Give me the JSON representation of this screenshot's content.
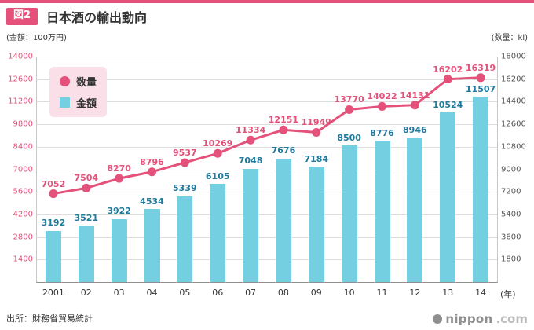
{
  "header": {
    "figure_label": "図2",
    "title": "日本酒の輸出動向"
  },
  "legend": {
    "line_label": "数量",
    "bar_label": "金額"
  },
  "footer": {
    "source": "出所：財務省貿易統計",
    "logo_name": "nippon",
    "logo_tld": ".com"
  },
  "colors": {
    "accent_pink": "#e4527b",
    "bar_fill": "#74cfe0",
    "bar_value_color": "#1f7a9b",
    "legend_bg": "#fadee8",
    "grid": "#dddddd",
    "left_tick_color": "#e4527b",
    "right_tick_color": "#555555"
  },
  "chart_data": {
    "type": "combo-bar-line",
    "title": "日本酒の輸出動向",
    "categories": [
      "2001",
      "02",
      "03",
      "04",
      "05",
      "06",
      "07",
      "08",
      "09",
      "10",
      "11",
      "12",
      "13",
      "14"
    ],
    "x_suffix": "(年)",
    "left_axis": {
      "label": "(金額：100万円)",
      "min": 0,
      "max": 14000,
      "ticks": [
        1400,
        2800,
        4200,
        5600,
        7000,
        8400,
        9800,
        11200,
        12600,
        14000
      ]
    },
    "right_axis": {
      "label": "(数量：kl)",
      "min": 0,
      "max": 18000,
      "ticks": [
        1800,
        3600,
        5400,
        7200,
        9000,
        10800,
        12600,
        14400,
        16200,
        18000
      ]
    },
    "series": [
      {
        "name": "数量",
        "type": "line",
        "axis": "right",
        "color": "#e4527b",
        "values": [
          7052,
          7504,
          8270,
          8796,
          9537,
          10269,
          11334,
          12151,
          11949,
          13770,
          14022,
          14131,
          16202,
          16319
        ]
      },
      {
        "name": "金額",
        "type": "bar",
        "axis": "left",
        "color": "#74cfe0",
        "values": [
          3192,
          3521,
          3922,
          4534,
          5339,
          6105,
          7048,
          7676,
          7184,
          8500,
          8776,
          8946,
          10524,
          11507
        ]
      }
    ],
    "grid": true,
    "legend_position": "top-left-inside"
  }
}
